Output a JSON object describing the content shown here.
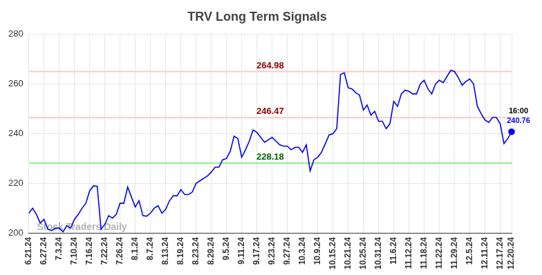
{
  "chart_data": {
    "type": "line",
    "title": "TRV Long Term Signals",
    "categories": [
      "6.21.24",
      null,
      null,
      null,
      "6.27.24",
      null,
      null,
      null,
      "7.3.24",
      null,
      null,
      null,
      "7.10.24",
      null,
      null,
      null,
      "7.16.24",
      null,
      null,
      null,
      "7.22.24",
      null,
      null,
      null,
      "7.26.24",
      null,
      null,
      null,
      "8.1.24",
      null,
      null,
      null,
      "8.7.24",
      null,
      null,
      null,
      "8.13.24",
      null,
      null,
      null,
      "8.19.24",
      null,
      null,
      null,
      "8.23.24",
      null,
      null,
      null,
      "8.29.24",
      null,
      null,
      null,
      "9.5.24",
      null,
      null,
      null,
      "9.11.24",
      null,
      null,
      null,
      "9.17.24",
      null,
      null,
      null,
      "9.23.24",
      null,
      null,
      null,
      "9.27.24",
      null,
      null,
      null,
      "10.3.24",
      null,
      null,
      null,
      "10.9.24",
      null,
      null,
      null,
      "10.15.24",
      null,
      null,
      null,
      "10.21.24",
      null,
      null,
      null,
      "10.25.24",
      null,
      null,
      null,
      "10.31.24",
      null,
      null,
      null,
      "11.6.24",
      null,
      null,
      null,
      "11.12.24",
      null,
      null,
      null,
      "11.18.24",
      null,
      null,
      null,
      "11.22.24",
      null,
      null,
      null,
      "11.29.24",
      null,
      null,
      null,
      "12.5.24",
      null,
      null,
      null,
      "12.11.24",
      null,
      null,
      null,
      "12.17.24",
      null,
      null,
      "12.20.24"
    ],
    "values": [
      208,
      210,
      207.5,
      204,
      205.5,
      201.5,
      201,
      202,
      202,
      200.5,
      203,
      202,
      205.5,
      207.5,
      210,
      212,
      217,
      219,
      218.8,
      201.5,
      203.5,
      207,
      206,
      207.5,
      212,
      212,
      218.5,
      214.5,
      210.5,
      213,
      207,
      206.8,
      208,
      210,
      211,
      208,
      209.5,
      213,
      215,
      215,
      217.5,
      215.5,
      215.5,
      216.5,
      220,
      221,
      222,
      223,
      224.5,
      226.5,
      226.5,
      229.5,
      230,
      233,
      239,
      238,
      230.5,
      233.5,
      237,
      241.5,
      240.5,
      238.5,
      236.5,
      237.5,
      238.5,
      237,
      235.5,
      235,
      235,
      233.5,
      234.5,
      234.5,
      232.5,
      235.5,
      225,
      229.5,
      230.5,
      232.5,
      236,
      239.5,
      240,
      242,
      263.8,
      264.5,
      258.5,
      258,
      256.5,
      255.5,
      249.5,
      251.5,
      247.5,
      249,
      245,
      245,
      242,
      244,
      253,
      251,
      256,
      257.5,
      257,
      256,
      256,
      260,
      261.5,
      258,
      256,
      260,
      261.5,
      260.5,
      263,
      265.5,
      265,
      262.5,
      259.5,
      261,
      262,
      260,
      251,
      248,
      245.5,
      244.5,
      246.5,
      246.5,
      244,
      236,
      238,
      240.76
    ],
    "color": "#0000ee",
    "ylim": [
      200,
      280
    ],
    "yticks": [
      200,
      220,
      240,
      260,
      280
    ],
    "grid": true,
    "reference_lines": [
      {
        "value": 264.98,
        "label": "264.98",
        "color": "#ffc8c8",
        "label_color": "#8b0000"
      },
      {
        "value": 246.47,
        "label": "246.47",
        "color": "#ffc8c8",
        "label_color": "#8b0000"
      },
      {
        "value": 228.18,
        "label": "228.18",
        "color": "#90ee90",
        "label_color": "#006400"
      }
    ],
    "end_annotation": "16:00",
    "watermark": "Stock Traders Daily"
  }
}
